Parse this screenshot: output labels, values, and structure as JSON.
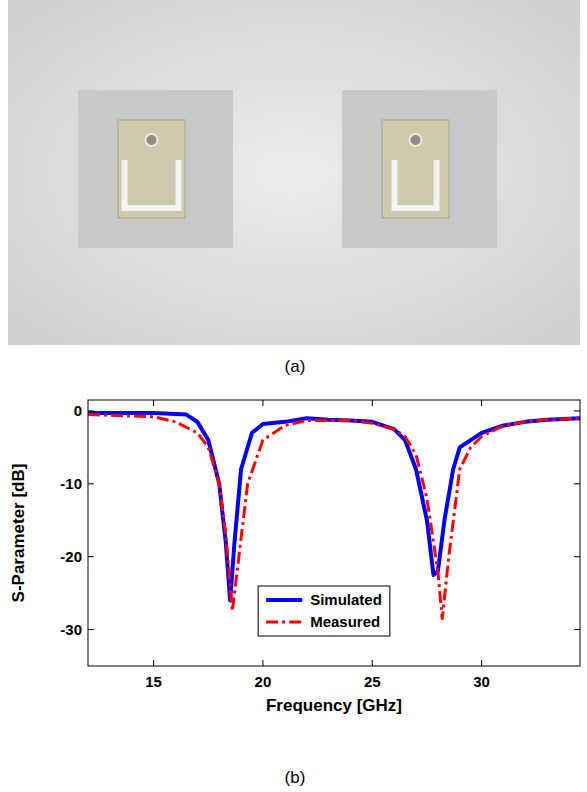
{
  "captions": {
    "photo": "(a)",
    "chart": "(b)"
  },
  "chart_data": {
    "type": "line",
    "x_label": "Frequency [GHz]",
    "y_label": "S-Parameter [dB]",
    "xlim": [
      12,
      34.5
    ],
    "ylim": [
      -35,
      1.5
    ],
    "xticks": [
      15,
      20,
      25,
      30
    ],
    "yticks": [
      -30,
      -20,
      -10,
      0
    ],
    "grid": false,
    "legend": "lower center",
    "series": [
      {
        "name": "Simulated",
        "color": "#0000ff",
        "line_style": "solid",
        "x": [
          12,
          15,
          16.5,
          17,
          17.5,
          18,
          18.3,
          18.5,
          18.7,
          19,
          19.5,
          20,
          21,
          22,
          23,
          24,
          25,
          26,
          26.5,
          27,
          27.5,
          27.8,
          28,
          28.3,
          28.7,
          29,
          30,
          31,
          32,
          33,
          34.5
        ],
        "values": [
          -0.3,
          -0.3,
          -0.5,
          -1.5,
          -4,
          -10,
          -18,
          -26,
          -18,
          -8,
          -3,
          -1.8,
          -1.5,
          -1,
          -1.2,
          -1.3,
          -1.5,
          -2.5,
          -4,
          -8,
          -15,
          -22.5,
          -22,
          -15,
          -8,
          -5,
          -3,
          -2,
          -1.5,
          -1.2,
          -1
        ]
      },
      {
        "name": "Measured",
        "color": "#ff0000",
        "line_style": "dashdot",
        "x": [
          12,
          15,
          16,
          17,
          17.5,
          18,
          18.3,
          18.6,
          18.9,
          19.3,
          20,
          21,
          22,
          24,
          25,
          26,
          26.5,
          27,
          27.5,
          28,
          28.2,
          28.5,
          29,
          29.5,
          30,
          31,
          32,
          33,
          34.5
        ],
        "values": [
          -0.5,
          -0.8,
          -1.5,
          -3,
          -5,
          -10,
          -17,
          -27.5,
          -20,
          -10,
          -4,
          -2,
          -1.3,
          -1.3,
          -1.7,
          -2.5,
          -3.5,
          -6,
          -12,
          -22,
          -28.5,
          -20,
          -8,
          -5,
          -3.5,
          -2,
          -1.5,
          -1.2,
          -1
        ]
      }
    ]
  }
}
